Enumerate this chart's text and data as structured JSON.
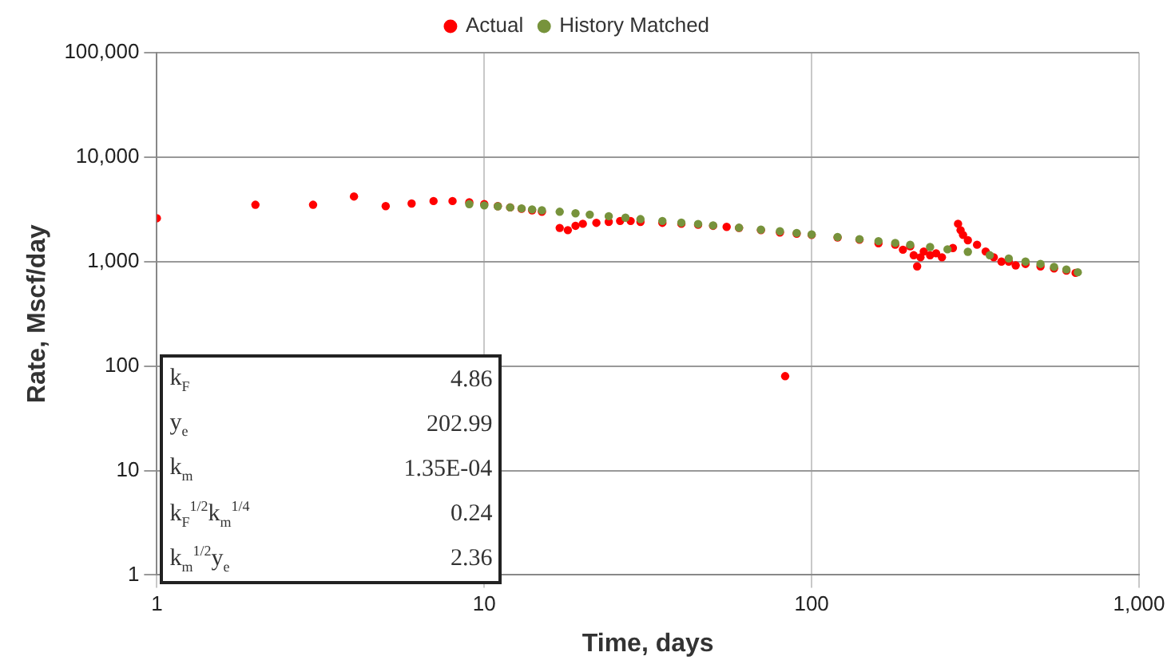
{
  "chart_data": {
    "type": "scatter",
    "xlabel": "Time, days",
    "ylabel": "Rate, Mscf/day",
    "log": "xy",
    "legend": "top",
    "grid": true,
    "marker": "circle",
    "xlim": [
      1,
      1000
    ],
    "xticks": [
      1,
      10,
      100,
      {
        "value": 1000,
        "label": "1,000"
      }
    ],
    "ylim": [
      1,
      100000
    ],
    "yticks": [
      1,
      10,
      100,
      {
        "value": 1000,
        "label": "1,000"
      },
      {
        "value": 10000,
        "label": "10,000"
      },
      {
        "value": 100000,
        "label": "100,000"
      }
    ],
    "series": [
      {
        "name": "Actual",
        "color": "#ff0000",
        "x": [
          1,
          2,
          3,
          4,
          5,
          6,
          7,
          8,
          9,
          10,
          11,
          12,
          13,
          14,
          15,
          17,
          18,
          19,
          20,
          22,
          24,
          26,
          28,
          30,
          35,
          40,
          45,
          50,
          55,
          60,
          70,
          80,
          83,
          90,
          100,
          120,
          140,
          160,
          180,
          190,
          200,
          205,
          210,
          215,
          220,
          230,
          240,
          250,
          270,
          280,
          285,
          290,
          300,
          320,
          340,
          360,
          380,
          400,
          420,
          450,
          500,
          550,
          600,
          640
        ],
        "values": [
          2600,
          3500,
          3500,
          4200,
          3400,
          3600,
          3800,
          3800,
          3700,
          3550,
          3400,
          3300,
          3200,
          3100,
          3000,
          2100,
          2000,
          2200,
          2300,
          2350,
          2400,
          2450,
          2450,
          2400,
          2350,
          2300,
          2250,
          2200,
          2150,
          2100,
          2000,
          1900,
          80,
          1850,
          1800,
          1700,
          1620,
          1500,
          1450,
          1300,
          1400,
          1150,
          900,
          1100,
          1250,
          1150,
          1200,
          1100,
          1350,
          2300,
          2000,
          1800,
          1600,
          1450,
          1250,
          1100,
          1000,
          1000,
          920,
          950,
          900,
          860,
          820,
          780
        ]
      },
      {
        "name": "History Matched",
        "color": "#77933c",
        "x": [
          9,
          10,
          11,
          12,
          13,
          14,
          15,
          17,
          19,
          21,
          24,
          27,
          30,
          35,
          40,
          45,
          50,
          60,
          70,
          80,
          90,
          100,
          120,
          140,
          160,
          180,
          200,
          230,
          260,
          300,
          350,
          400,
          450,
          500,
          550,
          600,
          650
        ],
        "values": [
          3550,
          3450,
          3380,
          3300,
          3230,
          3160,
          3100,
          3000,
          2900,
          2820,
          2720,
          2630,
          2550,
          2450,
          2360,
          2290,
          2220,
          2110,
          2020,
          1950,
          1880,
          1820,
          1720,
          1640,
          1570,
          1510,
          1450,
          1380,
          1310,
          1240,
          1150,
          1070,
          1000,
          950,
          890,
          840,
          790
        ]
      }
    ],
    "annotations": [
      "k$_{F}$",
      "4.86",
      "y$_{e}$",
      "202.99",
      "k$_{m}$",
      "1.35E-04",
      "k$_{F}$$^{1/2}$k$_{m}$$^{1/4}$",
      "0.24",
      "k$_{m}$$^{1/2}$y$_{e}$",
      "2.36"
    ]
  }
}
